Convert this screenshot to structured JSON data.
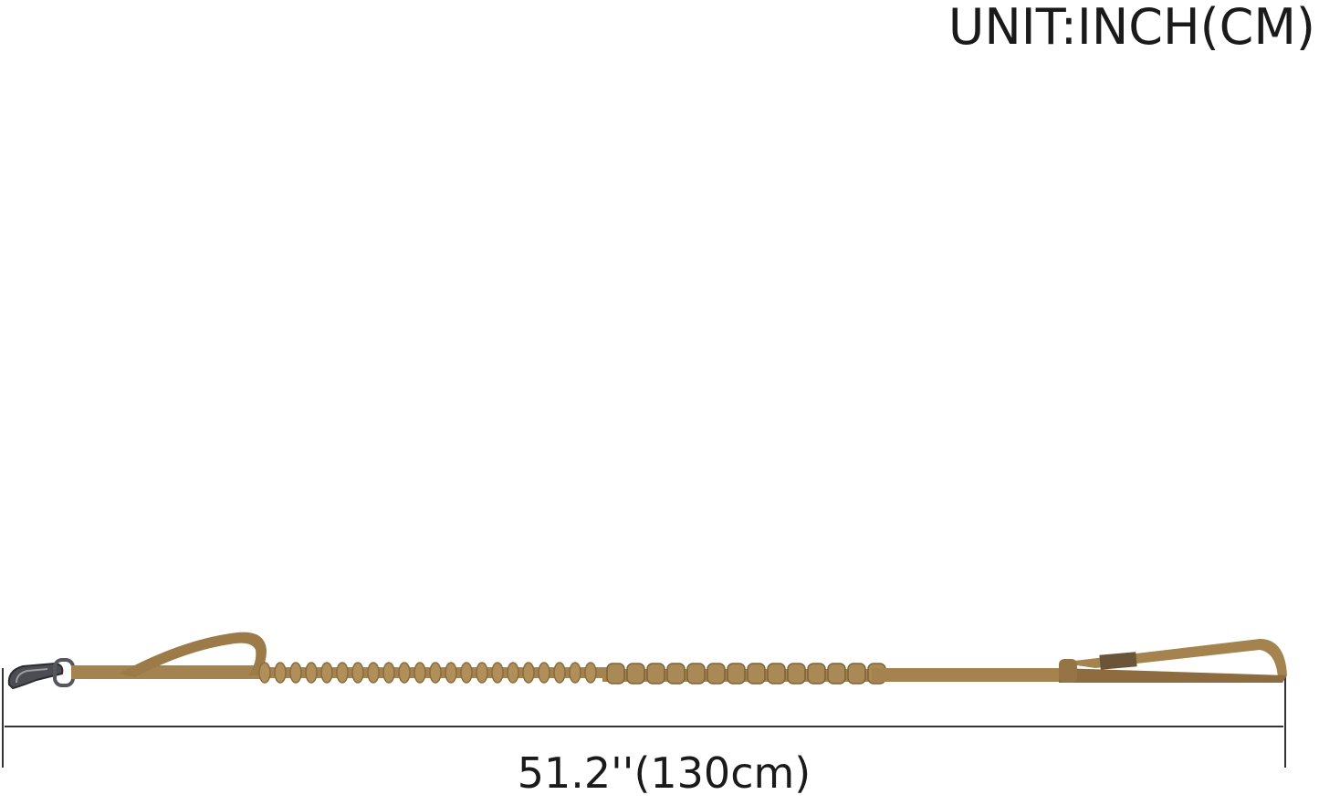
{
  "unit_label": "UNIT:INCH(CM)",
  "dimension_label": "51.2''(130cm)",
  "colors": {
    "leash": "#a4834f",
    "leash_dark": "#7e6238",
    "hardware": "#55575c",
    "dimension_line": "#333333"
  }
}
